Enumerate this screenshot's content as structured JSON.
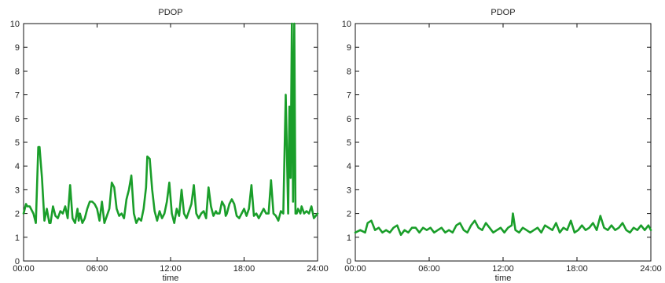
{
  "chart_data": [
    {
      "type": "line",
      "title": "PDOP",
      "xlabel": "time",
      "ylabel": "",
      "xlim": [
        0,
        24
      ],
      "ylim": [
        0,
        10
      ],
      "xticks": [
        0,
        6,
        12,
        18,
        24
      ],
      "xtick_labels": [
        "00:00",
        "06:00",
        "12:00",
        "18:00",
        "24:00"
      ],
      "yticks": [
        0,
        1,
        2,
        3,
        4,
        5,
        6,
        7,
        8,
        9,
        10
      ],
      "ytick_labels": [
        "0",
        "1",
        "2",
        "3",
        "4",
        "5",
        "6",
        "7",
        "8",
        "9",
        "10"
      ],
      "grid": false,
      "line_color": "#1a9e2a",
      "series": [
        {
          "x": [
            0.0,
            0.2,
            0.3,
            0.5,
            0.8,
            1.0,
            1.2,
            1.3,
            1.5,
            1.7,
            1.9,
            2.1,
            2.2,
            2.4,
            2.6,
            2.8,
            3.0,
            3.2,
            3.4,
            3.6,
            3.8,
            4.0,
            4.2,
            4.4,
            4.5,
            4.6,
            4.8,
            5.0,
            5.2,
            5.4,
            5.6,
            5.8,
            6.0,
            6.2,
            6.4,
            6.6,
            6.8,
            7.0,
            7.2,
            7.4,
            7.6,
            7.8,
            8.0,
            8.2,
            8.4,
            8.6,
            8.8,
            9.0,
            9.2,
            9.4,
            9.6,
            9.8,
            10.0,
            10.1,
            10.3,
            10.5,
            10.7,
            10.9,
            11.1,
            11.3,
            11.5,
            11.7,
            11.9,
            12.1,
            12.3,
            12.5,
            12.7,
            12.9,
            13.1,
            13.3,
            13.5,
            13.7,
            13.9,
            14.1,
            14.3,
            14.5,
            14.7,
            14.9,
            15.1,
            15.3,
            15.5,
            15.7,
            15.8,
            16.0,
            16.2,
            16.4,
            16.5,
            16.6,
            16.8,
            17.0,
            17.2,
            17.4,
            17.6,
            17.8,
            18.0,
            18.2,
            18.4,
            18.6,
            18.8,
            19.0,
            19.2,
            19.4,
            19.6,
            19.8,
            20.0,
            20.2,
            20.4,
            20.6,
            20.8,
            21.0,
            21.2,
            21.4,
            21.6,
            21.7,
            21.8,
            21.9,
            22.0,
            22.1,
            22.2,
            22.3,
            22.4,
            22.5,
            22.6,
            22.7,
            22.9,
            23.1,
            23.3,
            23.5,
            23.7,
            24.0
          ],
          "y": [
            2.0,
            2.4,
            2.3,
            2.3,
            2.0,
            1.6,
            4.8,
            4.8,
            3.5,
            1.7,
            2.2,
            1.6,
            1.6,
            2.3,
            1.9,
            1.8,
            2.1,
            2.0,
            2.3,
            1.8,
            3.2,
            1.8,
            1.6,
            2.2,
            1.7,
            2.0,
            1.6,
            1.8,
            2.2,
            2.5,
            2.5,
            2.4,
            2.2,
            1.7,
            2.5,
            1.6,
            1.9,
            2.2,
            3.3,
            3.1,
            2.2,
            1.9,
            2.0,
            1.8,
            2.6,
            3.0,
            3.6,
            2.0,
            1.6,
            1.8,
            1.7,
            2.2,
            3.1,
            4.4,
            4.3,
            3.0,
            2.1,
            1.7,
            2.1,
            1.8,
            2.0,
            2.5,
            3.3,
            2.0,
            1.6,
            2.2,
            1.9,
            3.0,
            2.0,
            1.8,
            2.1,
            2.4,
            3.2,
            2.0,
            1.8,
            2.0,
            2.1,
            1.8,
            3.1,
            2.3,
            1.9,
            2.1,
            2.0,
            2.0,
            2.5,
            2.3,
            1.9,
            2.0,
            2.4,
            2.6,
            2.4,
            1.9,
            1.8,
            2.0,
            2.2,
            1.9,
            2.2,
            3.2,
            1.9,
            2.0,
            1.8,
            2.0,
            2.2,
            2.0,
            2.0,
            3.4,
            2.0,
            1.9,
            1.7,
            2.1,
            2.0,
            7.0,
            2.0,
            6.5,
            3.5,
            10.0,
            2.5,
            10.0,
            2.0,
            2.0,
            2.2,
            2.1,
            2.0,
            2.3,
            2.0,
            2.1,
            2.0,
            2.3,
            1.8,
            2.0
          ]
        }
      ]
    },
    {
      "type": "line",
      "title": "PDOP",
      "xlabel": "time",
      "ylabel": "",
      "xlim": [
        0,
        24
      ],
      "ylim": [
        0,
        10
      ],
      "xticks": [
        0,
        6,
        12,
        18,
        24
      ],
      "xtick_labels": [
        "00:00",
        "06:00",
        "12:00",
        "18:00",
        "24:00"
      ],
      "yticks": [
        0,
        1,
        2,
        3,
        4,
        5,
        6,
        7,
        8,
        9,
        10
      ],
      "ytick_labels": [
        "0",
        "1",
        "2",
        "3",
        "4",
        "5",
        "6",
        "7",
        "8",
        "9",
        "10"
      ],
      "grid": false,
      "line_color": "#1a9e2a",
      "series": [
        {
          "x": [
            0.0,
            0.4,
            0.8,
            1.0,
            1.3,
            1.6,
            1.9,
            2.2,
            2.5,
            2.8,
            3.1,
            3.4,
            3.7,
            4.0,
            4.3,
            4.6,
            4.9,
            5.2,
            5.5,
            5.8,
            6.1,
            6.4,
            6.7,
            7.0,
            7.3,
            7.6,
            7.9,
            8.2,
            8.5,
            8.8,
            9.1,
            9.4,
            9.7,
            10.0,
            10.3,
            10.6,
            10.9,
            11.2,
            11.5,
            11.8,
            12.1,
            12.4,
            12.7,
            12.8,
            13.0,
            13.3,
            13.6,
            13.9,
            14.2,
            14.5,
            14.8,
            15.1,
            15.4,
            15.7,
            16.0,
            16.3,
            16.6,
            16.9,
            17.2,
            17.5,
            17.8,
            18.1,
            18.4,
            18.7,
            19.0,
            19.3,
            19.6,
            19.9,
            20.2,
            20.5,
            20.8,
            21.1,
            21.4,
            21.7,
            22.0,
            22.3,
            22.6,
            22.9,
            23.2,
            23.5,
            23.8,
            24.0
          ],
          "y": [
            1.2,
            1.3,
            1.2,
            1.6,
            1.7,
            1.3,
            1.4,
            1.2,
            1.3,
            1.2,
            1.4,
            1.5,
            1.1,
            1.3,
            1.2,
            1.4,
            1.4,
            1.2,
            1.4,
            1.3,
            1.4,
            1.2,
            1.3,
            1.4,
            1.2,
            1.3,
            1.2,
            1.5,
            1.6,
            1.3,
            1.2,
            1.5,
            1.7,
            1.4,
            1.3,
            1.6,
            1.4,
            1.2,
            1.3,
            1.4,
            1.2,
            1.4,
            1.5,
            2.0,
            1.3,
            1.2,
            1.4,
            1.3,
            1.2,
            1.3,
            1.4,
            1.2,
            1.5,
            1.4,
            1.3,
            1.6,
            1.2,
            1.4,
            1.3,
            1.7,
            1.2,
            1.3,
            1.5,
            1.3,
            1.4,
            1.6,
            1.3,
            1.9,
            1.4,
            1.3,
            1.5,
            1.3,
            1.4,
            1.6,
            1.3,
            1.2,
            1.4,
            1.3,
            1.5,
            1.3,
            1.5,
            1.3
          ]
        }
      ]
    }
  ]
}
